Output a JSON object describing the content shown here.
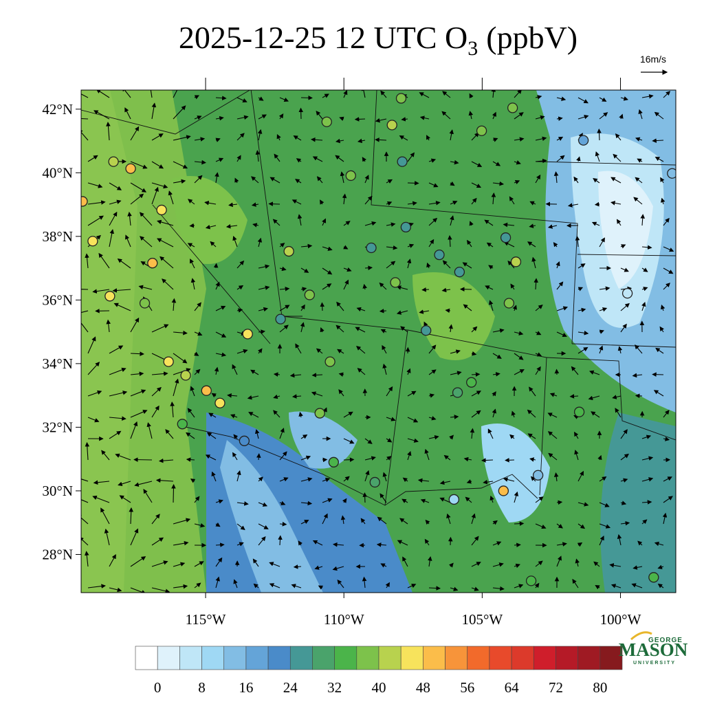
{
  "title": {
    "main": "2025-12-25 12 UTC O",
    "subscript": "3",
    "suffix": "(ppbV)"
  },
  "wind_reference": "16m/s",
  "map": {
    "lon_range": [
      -119.5,
      -98
    ],
    "lat_range": [
      26.8,
      42.6
    ],
    "lat_ticks": [
      {
        "value": 28,
        "label": "28°N"
      },
      {
        "value": 30,
        "label": "30°N"
      },
      {
        "value": 32,
        "label": "32°N"
      },
      {
        "value": 34,
        "label": "34°N"
      },
      {
        "value": 36,
        "label": "36°N"
      },
      {
        "value": 38,
        "label": "38°N"
      },
      {
        "value": 40,
        "label": "40°N"
      },
      {
        "value": 42,
        "label": "42°N"
      }
    ],
    "lon_ticks": [
      {
        "value": -115,
        "label": "115°W"
      },
      {
        "value": -110,
        "label": "110°W"
      },
      {
        "value": -105,
        "label": "105°W"
      },
      {
        "value": -100,
        "label": "100°W"
      }
    ]
  },
  "stations": [
    {
      "lon": -119.45,
      "lat": 39.1,
      "value": 48
    },
    {
      "lon": -119.08,
      "lat": 37.85,
      "value": 46
    },
    {
      "lon": -118.46,
      "lat": 36.12,
      "value": 46
    },
    {
      "lon": -118.33,
      "lat": 40.35,
      "value": 40
    },
    {
      "lon": -117.71,
      "lat": 40.13,
      "value": 48
    },
    {
      "lon": -116.59,
      "lat": 38.83,
      "value": 46
    },
    {
      "lon": -116.92,
      "lat": 37.16,
      "value": 48
    },
    {
      "lon": -117.2,
      "lat": 35.9,
      "value": 38
    },
    {
      "lon": -116.34,
      "lat": 34.06,
      "value": 46
    },
    {
      "lon": -115.72,
      "lat": 33.63,
      "value": 40
    },
    {
      "lon": -114.97,
      "lat": 33.15,
      "value": 48
    },
    {
      "lon": -115.84,
      "lat": 32.1,
      "value": 34
    },
    {
      "lon": -114.48,
      "lat": 32.76,
      "value": 46
    },
    {
      "lon": -113.6,
      "lat": 31.57,
      "value": 20
    },
    {
      "lon": -113.48,
      "lat": 34.93,
      "value": 44
    },
    {
      "lon": -111.99,
      "lat": 37.53,
      "value": 40
    },
    {
      "lon": -112.29,
      "lat": 35.4,
      "value": 24
    },
    {
      "lon": -111.24,
      "lat": 36.16,
      "value": 38
    },
    {
      "lon": -110.62,
      "lat": 41.6,
      "value": 36
    },
    {
      "lon": -109.75,
      "lat": 39.91,
      "value": 36
    },
    {
      "lon": -110.5,
      "lat": 34.06,
      "value": 36
    },
    {
      "lon": -110.87,
      "lat": 32.44,
      "value": 38
    },
    {
      "lon": -110.37,
      "lat": 30.9,
      "value": 34
    },
    {
      "lon": -108.88,
      "lat": 30.27,
      "value": 30
    },
    {
      "lon": -107.93,
      "lat": 42.34,
      "value": 38
    },
    {
      "lon": -108.26,
      "lat": 41.5,
      "value": 42
    },
    {
      "lon": -107.89,
      "lat": 40.35,
      "value": 26
    },
    {
      "lon": -107.76,
      "lat": 38.29,
      "value": 26
    },
    {
      "lon": -109.01,
      "lat": 37.64,
      "value": 24
    },
    {
      "lon": -108.14,
      "lat": 36.55,
      "value": 38
    },
    {
      "lon": -106.55,
      "lat": 37.42,
      "value": 24
    },
    {
      "lon": -105.82,
      "lat": 36.88,
      "value": 24
    },
    {
      "lon": -107.03,
      "lat": 35.04,
      "value": 26
    },
    {
      "lon": -105.89,
      "lat": 33.09,
      "value": 28
    },
    {
      "lon": -106.02,
      "lat": 29.73,
      "value": 10
    },
    {
      "lon": -105.39,
      "lat": 33.41,
      "value": 32
    },
    {
      "lon": -105.02,
      "lat": 41.32,
      "value": 36
    },
    {
      "lon": -103.9,
      "lat": 42.04,
      "value": 38
    },
    {
      "lon": -104.15,
      "lat": 37.96,
      "value": 24
    },
    {
      "lon": -103.78,
      "lat": 37.2,
      "value": 40
    },
    {
      "lon": -104.03,
      "lat": 35.9,
      "value": 36
    },
    {
      "lon": -104.23,
      "lat": 30.0,
      "value": 48
    },
    {
      "lon": -102.98,
      "lat": 30.49,
      "value": 12
    },
    {
      "lon": -101.49,
      "lat": 32.48,
      "value": 34
    },
    {
      "lon": -101.34,
      "lat": 41.02,
      "value": 16
    },
    {
      "lon": -99.75,
      "lat": 36.21,
      "value": 4
    },
    {
      "lon": -98.13,
      "lat": 39.98,
      "value": 12
    },
    {
      "lon": -103.23,
      "lat": 27.17,
      "value": 34
    },
    {
      "lon": -98.8,
      "lat": 27.28,
      "value": 34
    }
  ],
  "colorbar": {
    "levels": [
      0,
      4,
      8,
      12,
      16,
      20,
      24,
      28,
      32,
      36,
      40,
      44,
      48,
      52,
      56,
      60,
      64,
      68,
      72,
      76,
      80
    ],
    "colors": [
      "#ffffff",
      "#dff2fb",
      "#bfe6f7",
      "#9fd8f4",
      "#82bde4",
      "#64a4d8",
      "#4a8bc9",
      "#459896",
      "#4aa36b",
      "#4bb44a",
      "#7dc24b",
      "#b8d24e",
      "#f7e35c",
      "#fbbd4a",
      "#f7943a",
      "#f26a2b",
      "#e84a2b",
      "#dc3a2b",
      "#cf1e2b",
      "#b51a27",
      "#9f1a23",
      "#861a1e"
    ],
    "ticks": [
      0,
      8,
      16,
      24,
      32,
      40,
      48,
      56,
      64,
      72,
      80
    ]
  },
  "logo": {
    "top": "GEORGE",
    "main": "MASON",
    "bottom": "UNIVERSITY"
  }
}
